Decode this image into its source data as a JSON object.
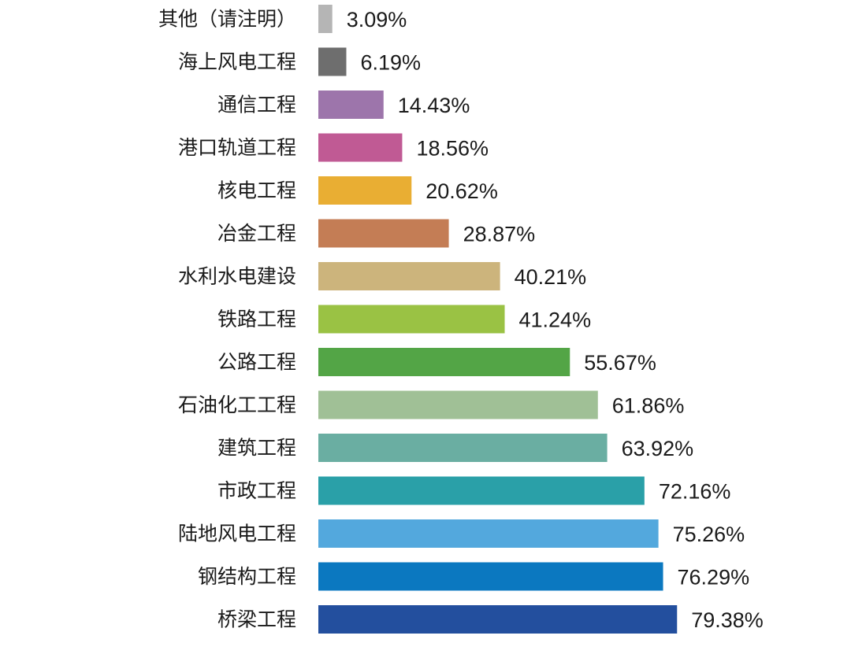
{
  "chart_data": {
    "type": "bar",
    "orientation": "horizontal",
    "title": "",
    "xlabel": "",
    "ylabel": "",
    "grid": false,
    "value_suffix": "%",
    "xlim": [
      0,
      80
    ],
    "categories": [
      "其他（请注明）",
      "海上风电工程",
      "通信工程",
      "港口轨道工程",
      "核电工程",
      "冶金工程",
      "水利水电建设",
      "铁路工程",
      "公路工程",
      "石油化工工程",
      "建筑工程",
      "市政工程",
      "陆地风电工程",
      "钢结构工程",
      "桥梁工程"
    ],
    "values": [
      3.09,
      6.19,
      14.43,
      18.56,
      20.62,
      28.87,
      40.21,
      41.24,
      55.67,
      61.86,
      63.92,
      72.16,
      75.26,
      76.29,
      79.38
    ],
    "value_labels": [
      "3.09%",
      "6.19%",
      "14.43%",
      "18.56%",
      "20.62%",
      "28.87%",
      "40.21%",
      "41.24%",
      "55.67%",
      "61.86%",
      "63.92%",
      "72.16%",
      "75.26%",
      "76.29%",
      "79.38%"
    ],
    "colors": [
      "#b5b5b5",
      "#6e6e6e",
      "#9d75ab",
      "#c05a94",
      "#e9ae33",
      "#c47d55",
      "#ccb47c",
      "#9ac244",
      "#53a546",
      "#a0c096",
      "#6aaea2",
      "#2aa0a8",
      "#53a8dd",
      "#0b78c0",
      "#234f9e"
    ]
  }
}
